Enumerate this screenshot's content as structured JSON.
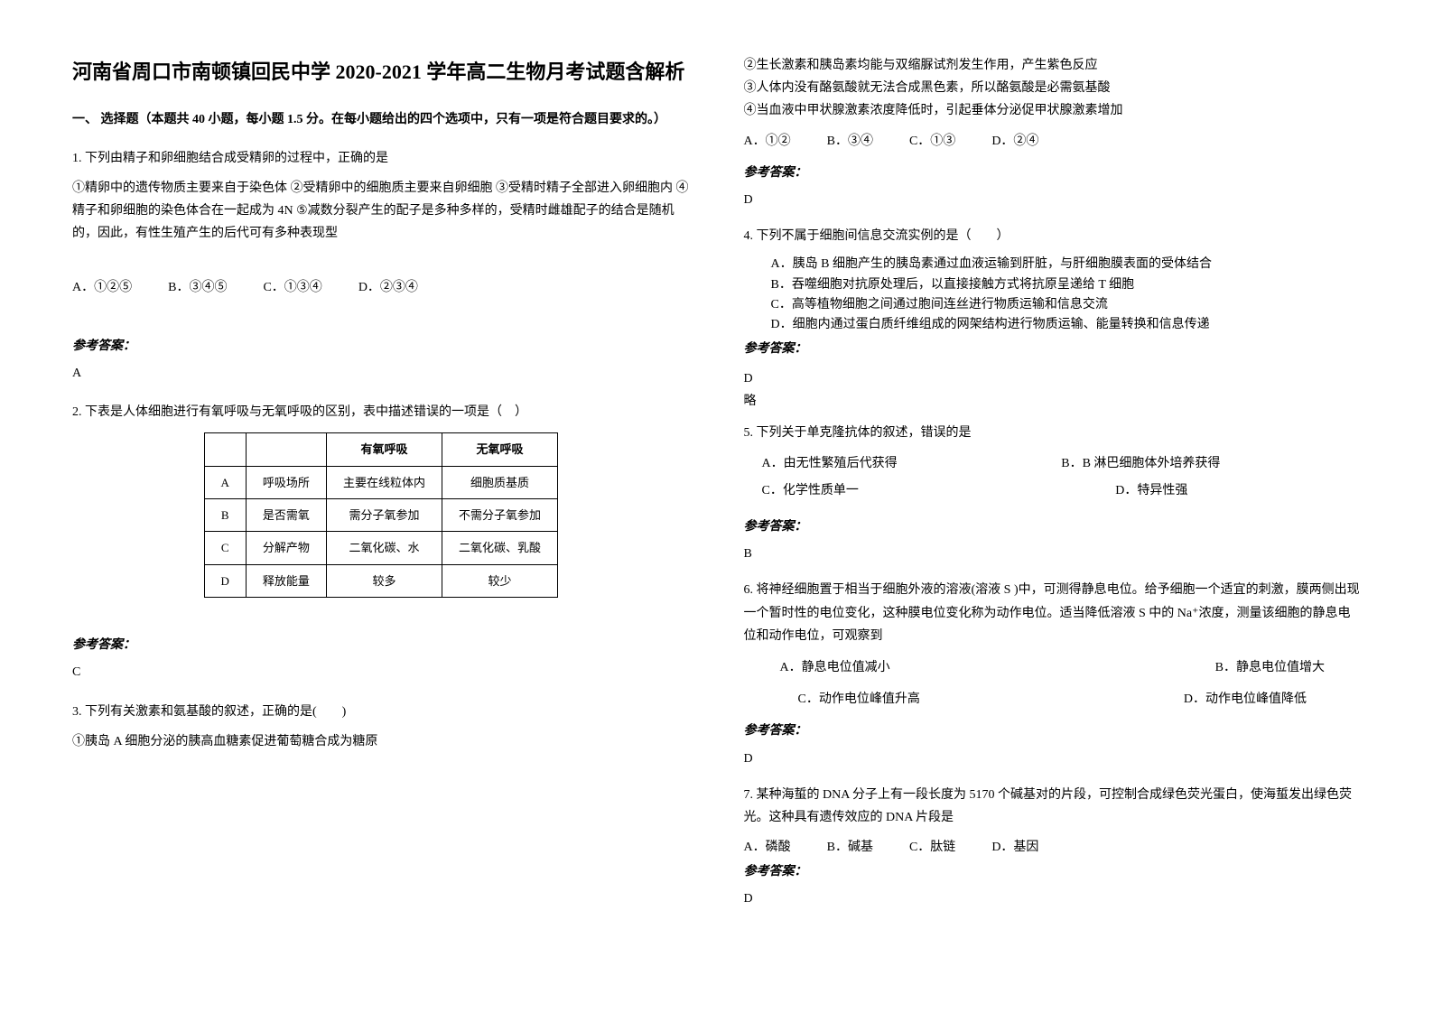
{
  "title": "河南省周口市南顿镇回民中学 2020-2021 学年高二生物月考试题含解析",
  "section1_header": "一、 选择题（本题共 40 小题，每小题 1.5 分。在每小题给出的四个选项中，只有一项是符合题目要求的。）",
  "q1": {
    "stem": "1. 下列由精子和卵细胞结合成受精卵的过程中，正确的是",
    "body": "①精卵中的遗传物质主要来自于染色体 ②受精卵中的细胞质主要来自卵细胞 ③受精时精子全部进入卵细胞内 ④精子和卵细胞的染色体合在一起成为 4N ⑤减数分裂产生的配子是多种多样的，受精时雌雄配子的结合是随机的，因此，有性生殖产生的后代可有多种表现型",
    "opts": {
      "a": "A．①②⑤",
      "b": "B．③④⑤",
      "c": "C．①③④",
      "d": "D．②③④"
    },
    "ans_label": "参考答案：",
    "ans": "A"
  },
  "q2": {
    "stem": "2. 下表是人体细胞进行有氧呼吸与无氧呼吸的区别，表中描述错误的一项是（　）",
    "table": {
      "headers": [
        "",
        "",
        "有氧呼吸",
        "无氧呼吸"
      ],
      "rows": [
        [
          "A",
          "呼吸场所",
          "主要在线粒体内",
          "细胞质基质"
        ],
        [
          "B",
          "是否需氧",
          "需分子氧参加",
          "不需分子氧参加"
        ],
        [
          "C",
          "分解产物",
          "二氧化碳、水",
          "二氧化碳、乳酸"
        ],
        [
          "D",
          "释放能量",
          "较多",
          "较少"
        ]
      ]
    },
    "ans_label": "参考答案：",
    "ans": "C"
  },
  "q3": {
    "stem": "3. 下列有关激素和氨基酸的叙述，正确的是(　　)",
    "line1": "①胰岛 A 细胞分泌的胰高血糖素促进葡萄糖合成为糖原",
    "line2": "②生长激素和胰岛素均能与双缩脲试剂发生作用，产生紫色反应",
    "line3": "③人体内没有酪氨酸就无法合成黑色素，所以酪氨酸是必需氨基酸",
    "line4": "④当血液中甲状腺激素浓度降低时，引起垂体分泌促甲状腺激素增加",
    "opts": {
      "a": "A．①②",
      "b": "B．③④",
      "c": "C．①③",
      "d": "D．②④"
    },
    "ans_label": "参考答案：",
    "ans": "D"
  },
  "q4": {
    "stem": "4. 下列不属于细胞间信息交流实例的是（　　）",
    "a": "A．胰岛 B 细胞产生的胰岛素通过血液运输到肝脏，与肝细胞膜表面的受体结合",
    "b": "B．吞噬细胞对抗原处理后，以直接接触方式将抗原呈递给 T 细胞",
    "c": "C．高等植物细胞之间通过胞间连丝进行物质运输和信息交流",
    "d": "D．细胞内通过蛋白质纤维组成的网架结构进行物质运输、能量转换和信息传递",
    "ans_label": "参考答案：",
    "ans": "D",
    "note": "略"
  },
  "q5": {
    "stem": "5. 下列关于单克隆抗体的叙述，错误的是",
    "a": "A．由无性繁殖后代获得",
    "b": "B．B 淋巴细胞体外培养获得",
    "c": "C．化学性质单一",
    "d": "D．特异性强",
    "ans_label": "参考答案：",
    "ans": "B"
  },
  "q6": {
    "stem_p1": "6. 将神经细胞置于相当于细胞外液的溶液(溶液 S )中，可测得静息电位。给予细胞一个适宜的刺激，膜两侧出现一个暂时性的电位变化，这种膜电位变化称为动作电位。适当降低溶液 S 中的 Na⁺浓度，测量该细胞的静息电位和动作电位，可观察到",
    "a": "A．静息电位值减小",
    "b": "B．静息电位值增大",
    "c": "C．动作电位峰值升高",
    "d": "D．动作电位峰值降低",
    "ans_label": "参考答案：",
    "ans": "D"
  },
  "q7": {
    "stem": "7. 某种海蜇的 DNA 分子上有一段长度为 5170 个碱基对的片段，可控制合成绿色荧光蛋白，使海蜇发出绿色荧光。这种具有遗传效应的 DNA 片段是",
    "opts": {
      "a": "A．磷酸",
      "b": "B．碱基",
      "c": "C．肽链",
      "d": "D．基因"
    },
    "ans_label": "参考答案：",
    "ans": "D"
  }
}
